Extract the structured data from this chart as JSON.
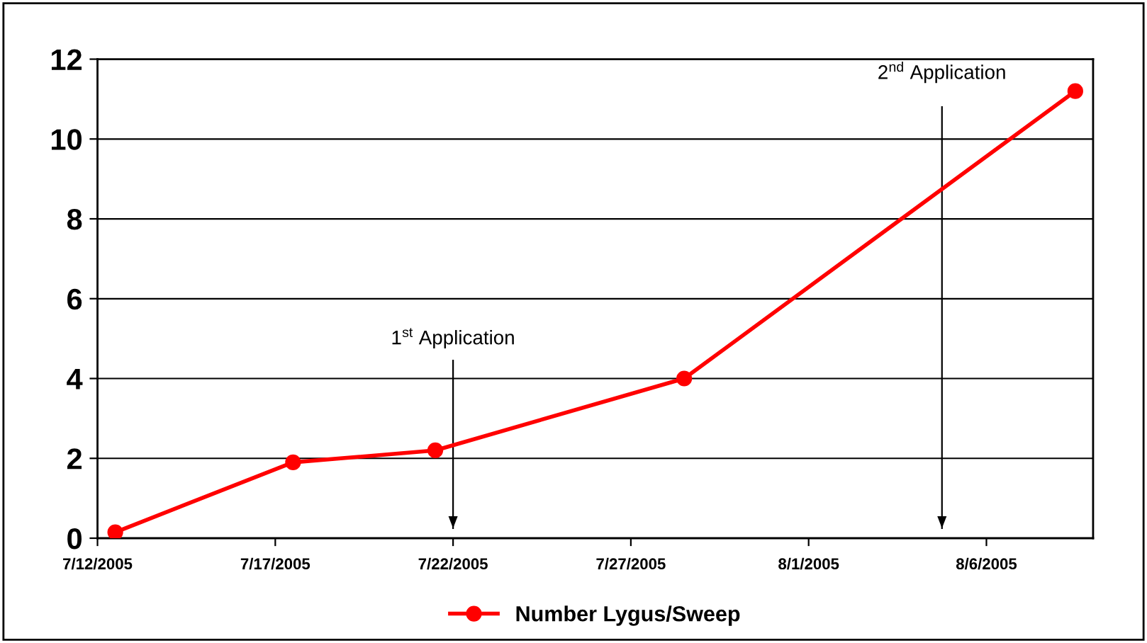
{
  "chart_data": {
    "type": "line",
    "x": [
      "2005-07-12T12:00",
      "2005-07-17T12:00",
      "2005-07-21T12:00",
      "2005-07-28T12:00",
      "2005-08-08T12:00"
    ],
    "series": [
      {
        "name": "Number Lygus/Sweep",
        "color": "#ff0000",
        "values": [
          0.15,
          1.9,
          2.2,
          4.0,
          11.2
        ]
      }
    ],
    "xlim": [
      "2005-07-12",
      "2005-08-09"
    ],
    "xticks": [
      {
        "value": "2005-07-12",
        "label": "7/12/2005"
      },
      {
        "value": "2005-07-17",
        "label": "7/17/2005"
      },
      {
        "value": "2005-07-22",
        "label": "7/22/2005"
      },
      {
        "value": "2005-07-27",
        "label": "7/27/2005"
      },
      {
        "value": "2005-08-01",
        "label": "8/1/2005"
      },
      {
        "value": "2005-08-06",
        "label": "8/6/2005"
      }
    ],
    "ylim": [
      0,
      12
    ],
    "yticks": [
      0,
      2,
      4,
      6,
      8,
      10,
      12
    ],
    "ref_lines": [
      {
        "axis": "x",
        "value": "2005-07-22",
        "label": "1$^{st}$ Application"
      },
      {
        "axis": "x",
        "value": "2005-08-04T18:00",
        "label": "2$^{nd}$ Application"
      }
    ],
    "grid": "y",
    "legend": "bottom",
    "marker": "circle",
    "line_style": "solid"
  }
}
